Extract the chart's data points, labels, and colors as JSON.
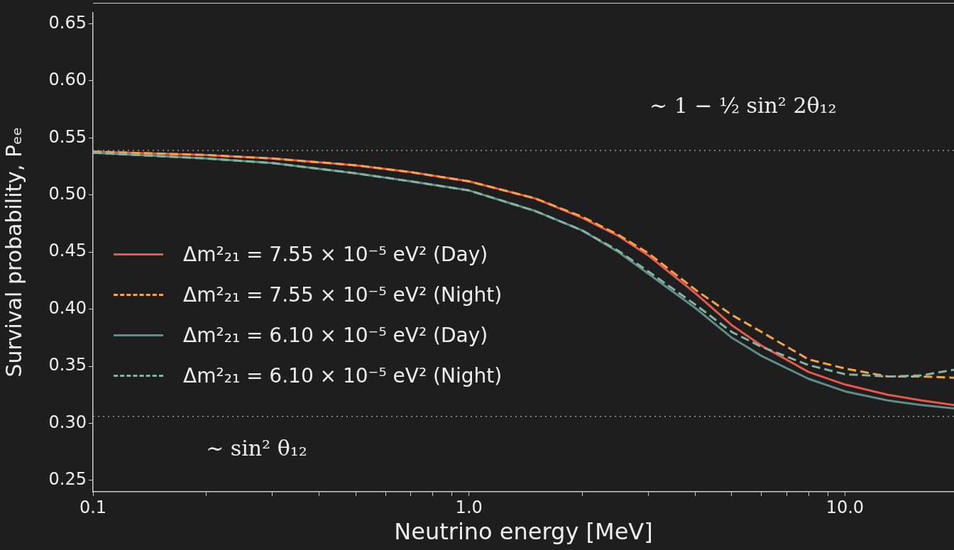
{
  "chart_data": {
    "type": "line",
    "xlabel": "Neutrino energy [MeV]",
    "ylabel": "Survival probability, Pₑₑ",
    "log": "x",
    "x": [
      0.1,
      0.2,
      0.3,
      0.5,
      0.7,
      1,
      1.5,
      2,
      2.5,
      3,
      4,
      5,
      6,
      8,
      10,
      13,
      16,
      19.5
    ],
    "series": [
      {
        "name": "Δm²₂₁ = 7.55 × 10⁻⁵ eV² (Day)",
        "color": "#e8574a",
        "line_style": "solid",
        "values": [
          0.538,
          0.535,
          0.532,
          0.526,
          0.52,
          0.512,
          0.497,
          0.48,
          0.464,
          0.447,
          0.414,
          0.386,
          0.368,
          0.345,
          0.334,
          0.325,
          0.32,
          0.316
        ]
      },
      {
        "name": "Δm²₂₁ = 7.55 × 10⁻⁵ eV² (Night)",
        "color": "#f5a442",
        "line_style": "dashed",
        "values": [
          0.538,
          0.535,
          0.532,
          0.526,
          0.52,
          0.512,
          0.497,
          0.481,
          0.465,
          0.449,
          0.417,
          0.395,
          0.38,
          0.356,
          0.348,
          0.341,
          0.341,
          0.34
        ]
      },
      {
        "name": "Δm²₂₁ = 6.10 × 10⁻⁵ eV² (Day)",
        "color": "#5f8d88",
        "line_style": "solid",
        "values": [
          0.537,
          0.532,
          0.528,
          0.519,
          0.512,
          0.504,
          0.486,
          0.469,
          0.45,
          0.431,
          0.401,
          0.375,
          0.359,
          0.339,
          0.328,
          0.32,
          0.316,
          0.313
        ]
      },
      {
        "name": "Δm²₂₁ = 6.10 × 10⁻⁵ eV² (Night)",
        "color": "#86b3a0",
        "line_style": "dashed",
        "values": [
          0.537,
          0.532,
          0.528,
          0.519,
          0.512,
          0.504,
          0.486,
          0.469,
          0.451,
          0.433,
          0.404,
          0.38,
          0.367,
          0.351,
          0.343,
          0.341,
          0.342,
          0.347
        ]
      }
    ],
    "xlim": [
      0.1,
      19.5
    ],
    "xticks": [
      {
        "value": 0.1,
        "label": "0.1"
      },
      {
        "value": 0.2,
        "label": null
      },
      {
        "value": 0.3,
        "label": null
      },
      {
        "value": 0.4,
        "label": null
      },
      {
        "value": 0.5,
        "label": null
      },
      {
        "value": 0.6,
        "label": null
      },
      {
        "value": 0.7,
        "label": null
      },
      {
        "value": 0.8,
        "label": null
      },
      {
        "value": 0.9,
        "label": null
      },
      {
        "value": 1,
        "label": "1.0"
      },
      {
        "value": 2,
        "label": null
      },
      {
        "value": 3,
        "label": null
      },
      {
        "value": 4,
        "label": null
      },
      {
        "value": 5,
        "label": null
      },
      {
        "value": 6,
        "label": null
      },
      {
        "value": 7,
        "label": null
      },
      {
        "value": 8,
        "label": null
      },
      {
        "value": 9,
        "label": null
      },
      {
        "value": 10,
        "label": "10.0"
      }
    ],
    "ylim": [
      0.24,
      0.66
    ],
    "yticks": [
      0.25,
      {
        "value": 0.3,
        "label": "0.30"
      },
      0.35,
      {
        "value": 0.4,
        "label": "0.40"
      },
      0.45,
      {
        "value": 0.5,
        "label": "0.50"
      },
      0.55,
      {
        "value": 0.6,
        "label": "0.60"
      },
      0.65
    ],
    "ref_lines": [
      {
        "axis": "y",
        "value": 0.539,
        "label": "∼ 1 − ½ sin² 2θ₁₂",
        "color": "#999999",
        "line_style": "dotted"
      },
      {
        "axis": "y",
        "value": 0.306,
        "label": "∼ sin² θ₁₂",
        "color": "#999999",
        "line_style": "dotted"
      }
    ],
    "grid": false,
    "legend": "left",
    "marker": "none"
  }
}
